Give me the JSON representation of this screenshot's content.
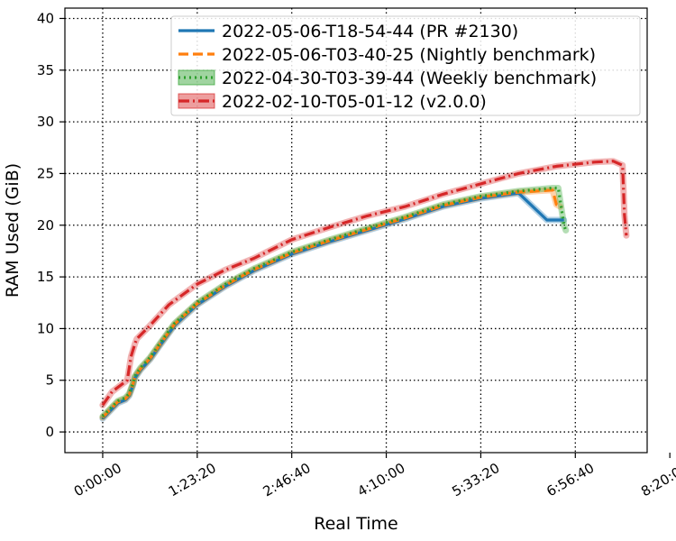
{
  "chart_data": {
    "type": "line",
    "title": "",
    "xlabel": "Real Time",
    "ylabel": "RAM Used (GiB)",
    "x_unit": "seconds",
    "xlim": [
      -2000,
      28800
    ],
    "ylim": [
      -2,
      41
    ],
    "x_ticks": [
      0,
      5000,
      10000,
      15000,
      20000,
      25000,
      30000
    ],
    "x_tick_labels": [
      "0:00:00",
      "1:23:20",
      "2:46:40",
      "4:10:00",
      "5:33:20",
      "6:56:40",
      "8:20:00"
    ],
    "y_ticks": [
      0,
      5,
      10,
      15,
      20,
      25,
      30,
      35,
      40
    ],
    "y_tick_labels": [
      "0",
      "5",
      "10",
      "15",
      "20",
      "25",
      "30",
      "35",
      "40"
    ],
    "grid": true,
    "legend_position": "top-right",
    "series": [
      {
        "name": "2022-05-06-T18-54-44 (PR #2130)",
        "color": "#1f77b4",
        "style": "solid",
        "x": [
          0,
          800,
          1200,
          1400,
          1600,
          1700,
          2000,
          2500,
          3000,
          3800,
          5000,
          6500,
          8000,
          10000,
          12000,
          14000,
          16000,
          18000,
          20000,
          22000,
          23500,
          24300,
          24400
        ],
        "y": [
          1.3,
          2.8,
          3.1,
          3.5,
          4.5,
          5.2,
          6.0,
          7.0,
          8.3,
          10.3,
          12.3,
          14.1,
          15.6,
          17.2,
          18.4,
          19.5,
          20.6,
          21.8,
          22.6,
          23.1,
          20.5,
          20.5,
          20.5
        ]
      },
      {
        "name": "2022-05-06-T03-40-25 (Nightly benchmark)",
        "color": "#ff7f0e",
        "style": "dashed",
        "x": [
          0,
          800,
          1200,
          1400,
          1600,
          1700,
          2000,
          2500,
          3000,
          3800,
          5000,
          6500,
          8000,
          10000,
          12000,
          14000,
          16000,
          18000,
          20000,
          22000,
          23800,
          24000,
          24200
        ],
        "y": [
          1.4,
          2.9,
          3.2,
          3.6,
          4.6,
          5.3,
          6.1,
          7.1,
          8.4,
          10.4,
          12.4,
          14.2,
          15.7,
          17.3,
          18.5,
          19.6,
          20.7,
          21.9,
          22.7,
          23.2,
          23.4,
          22.0,
          21.8
        ]
      },
      {
        "name": "2022-04-30-T03-39-44 (Weekly benchmark)",
        "color": "#2ca02c",
        "style": "dotted",
        "x": [
          0,
          800,
          1200,
          1400,
          1600,
          1700,
          2000,
          2500,
          3000,
          3800,
          5000,
          6500,
          8000,
          10000,
          12000,
          14000,
          16000,
          18000,
          20000,
          22000,
          23800,
          24100,
          24400,
          24500
        ],
        "y": [
          1.5,
          3.0,
          3.3,
          3.7,
          4.7,
          5.4,
          6.2,
          7.2,
          8.5,
          10.5,
          12.5,
          14.3,
          15.8,
          17.4,
          18.6,
          19.7,
          20.8,
          22.0,
          22.8,
          23.3,
          23.6,
          23.6,
          20.0,
          19.5
        ]
      },
      {
        "name": "2022-02-10-T05-01-12 (v2.0.0)",
        "color": "#d62728",
        "style": "dashdot",
        "x": [
          0,
          500,
          1300,
          1500,
          1700,
          1800,
          2500,
          3500,
          5000,
          6500,
          8000,
          10000,
          12000,
          14000,
          16000,
          18000,
          20000,
          22000,
          24000,
          26000,
          27000,
          27500,
          27600,
          27700
        ],
        "y": [
          2.6,
          3.9,
          5.0,
          7.3,
          8.5,
          9.0,
          10.3,
          12.3,
          14.3,
          15.7,
          16.8,
          18.6,
          19.8,
          20.9,
          21.8,
          23.0,
          24.0,
          25.0,
          25.7,
          26.1,
          26.2,
          25.8,
          21.0,
          19.0
        ]
      }
    ]
  }
}
